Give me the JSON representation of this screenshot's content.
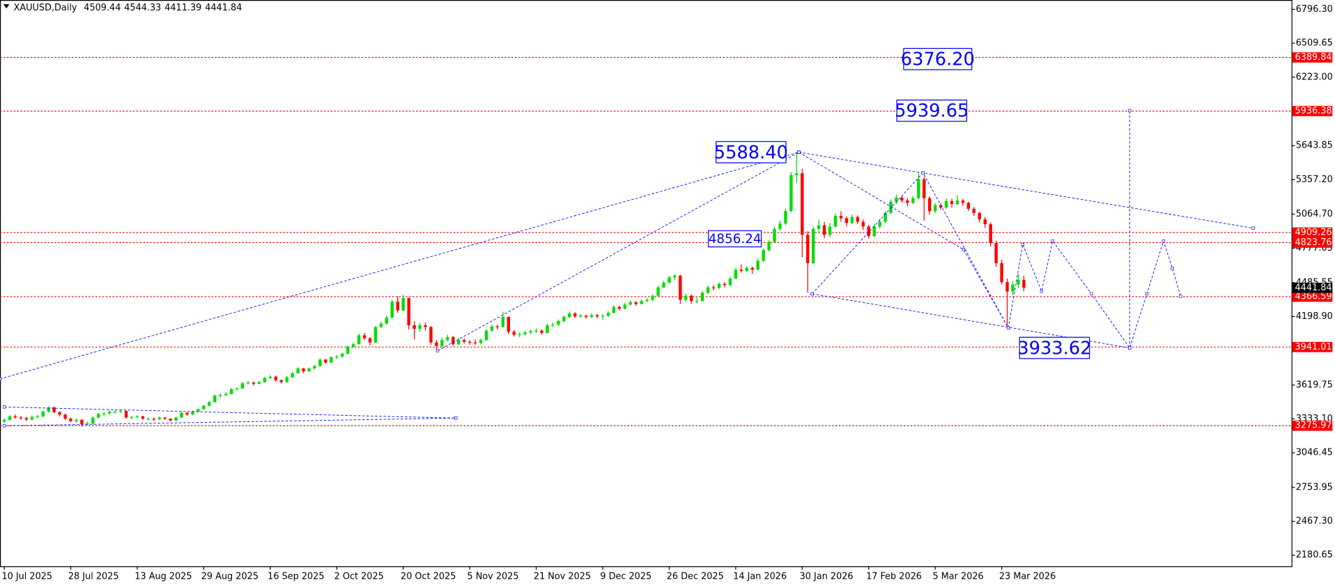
{
  "chart_data": {
    "type": "candlestick",
    "title": "XAUUSD,Daily",
    "categories": [
      "10 Jul 2025",
      null,
      null,
      null,
      null,
      null,
      null,
      null,
      null,
      null,
      null,
      null,
      "28 Jul 2025",
      null,
      null,
      null,
      null,
      null,
      null,
      null,
      null,
      null,
      null,
      null,
      "13 Aug 2025",
      null,
      null,
      null,
      null,
      null,
      null,
      null,
      null,
      null,
      null,
      null,
      "29 Aug 2025",
      null,
      null,
      null,
      null,
      null,
      null,
      null,
      null,
      null,
      null,
      null,
      "16 Sep 2025",
      null,
      null,
      null,
      null,
      null,
      null,
      null,
      null,
      null,
      null,
      null,
      "2 Oct 2025",
      null,
      null,
      null,
      null,
      null,
      null,
      null,
      null,
      null,
      null,
      null,
      "20 Oct 2025",
      null,
      null,
      null,
      null,
      null,
      null,
      null,
      null,
      null,
      null,
      null,
      "5 Nov 2025",
      null,
      null,
      null,
      null,
      null,
      null,
      null,
      null,
      null,
      null,
      null,
      "21 Nov 2025",
      null,
      null,
      null,
      null,
      null,
      null,
      null,
      null,
      null,
      null,
      null,
      "9 Dec 2025",
      null,
      null,
      null,
      null,
      null,
      null,
      null,
      null,
      null,
      null,
      null,
      "26 Dec 2025",
      null,
      null,
      null,
      null,
      null,
      null,
      null,
      null,
      null,
      null,
      null,
      "14 Jan 2026",
      null,
      null,
      null,
      null,
      null,
      null,
      null,
      null,
      null,
      null,
      null,
      "30 Jan 2026",
      null,
      null,
      null,
      null,
      null,
      null,
      null,
      null,
      null,
      null,
      null,
      "17 Feb 2026",
      null,
      null,
      null,
      null,
      null,
      null,
      null,
      null,
      null,
      null,
      null,
      "5 Mar 2026",
      null,
      null,
      null,
      null,
      null,
      null,
      null,
      null,
      null,
      null,
      null,
      "23 Mar 2026",
      null,
      null,
      null,
      null
    ],
    "ohlc": [
      [
        3310,
        3340,
        3300,
        3325
      ],
      [
        3325,
        3365,
        3318,
        3355
      ],
      [
        3355,
        3372,
        3335,
        3345
      ],
      [
        3345,
        3358,
        3325,
        3340
      ],
      [
        3340,
        3352,
        3315,
        3328
      ],
      [
        3328,
        3362,
        3320,
        3350
      ],
      [
        3350,
        3368,
        3338,
        3355
      ],
      [
        3355,
        3405,
        3348,
        3395
      ],
      [
        3395,
        3440,
        3385,
        3430
      ],
      [
        3430,
        3438,
        3380,
        3390
      ],
      [
        3390,
        3400,
        3355,
        3370
      ],
      [
        3370,
        3378,
        3325,
        3335
      ],
      [
        3335,
        3345,
        3305,
        3315
      ],
      [
        3315,
        3335,
        3300,
        3325
      ],
      [
        3325,
        3332,
        3268,
        3290
      ],
      [
        3290,
        3310,
        3280,
        3295
      ],
      [
        3295,
        3355,
        3285,
        3345
      ],
      [
        3345,
        3385,
        3340,
        3375
      ],
      [
        3375,
        3390,
        3360,
        3380
      ],
      [
        3380,
        3405,
        3370,
        3395
      ],
      [
        3395,
        3410,
        3380,
        3395
      ],
      [
        3395,
        3410,
        3385,
        3400
      ],
      [
        3400,
        3405,
        3335,
        3345
      ],
      [
        3345,
        3360,
        3330,
        3350
      ],
      [
        3350,
        3365,
        3340,
        3355
      ],
      [
        3355,
        3360,
        3325,
        3335
      ],
      [
        3335,
        3345,
        3320,
        3335
      ],
      [
        3335,
        3345,
        3315,
        3330
      ],
      [
        3330,
        3355,
        3322,
        3345
      ],
      [
        3345,
        3350,
        3325,
        3335
      ],
      [
        3335,
        3340,
        3312,
        3320
      ],
      [
        3320,
        3352,
        3315,
        3345
      ],
      [
        3345,
        3392,
        3340,
        3385
      ],
      [
        3385,
        3390,
        3360,
        3370
      ],
      [
        3370,
        3402,
        3365,
        3395
      ],
      [
        3395,
        3422,
        3388,
        3415
      ],
      [
        3415,
        3452,
        3410,
        3445
      ],
      [
        3445,
        3485,
        3440,
        3475
      ],
      [
        3475,
        3540,
        3470,
        3530
      ],
      [
        3530,
        3550,
        3515,
        3535
      ],
      [
        3535,
        3560,
        3525,
        3545
      ],
      [
        3545,
        3595,
        3540,
        3585
      ],
      [
        3585,
        3600,
        3575,
        3590
      ],
      [
        3590,
        3645,
        3585,
        3635
      ],
      [
        3635,
        3655,
        3625,
        3640
      ],
      [
        3640,
        3650,
        3615,
        3630
      ],
      [
        3630,
        3655,
        3625,
        3645
      ],
      [
        3645,
        3690,
        3640,
        3680
      ],
      [
        3680,
        3705,
        3670,
        3690
      ],
      [
        3690,
        3700,
        3650,
        3660
      ],
      [
        3660,
        3668,
        3630,
        3645
      ],
      [
        3645,
        3695,
        3640,
        3685
      ],
      [
        3685,
        3730,
        3680,
        3720
      ],
      [
        3720,
        3770,
        3715,
        3760
      ],
      [
        3760,
        3765,
        3720,
        3735
      ],
      [
        3735,
        3770,
        3730,
        3760
      ],
      [
        3760,
        3790,
        3750,
        3780
      ],
      [
        3780,
        3845,
        3775,
        3835
      ],
      [
        3835,
        3840,
        3800,
        3810
      ],
      [
        3810,
        3865,
        3805,
        3855
      ],
      [
        3855,
        3875,
        3840,
        3860
      ],
      [
        3860,
        3895,
        3850,
        3885
      ],
      [
        3885,
        3955,
        3880,
        3945
      ],
      [
        3945,
        3978,
        3935,
        3965
      ],
      [
        3965,
        4055,
        3960,
        4040
      ],
      [
        4040,
        4060,
        4000,
        4015
      ],
      [
        4015,
        4025,
        3955,
        3980
      ],
      [
        3980,
        4120,
        3975,
        4110
      ],
      [
        4110,
        4155,
        4100,
        4140
      ],
      [
        4140,
        4210,
        4130,
        4190
      ],
      [
        4190,
        4340,
        4185,
        4325
      ],
      [
        4325,
        4370,
        4230,
        4250
      ],
      [
        4250,
        4381,
        4245,
        4355
      ],
      [
        4355,
        4360,
        4090,
        4125
      ],
      [
        4125,
        4160,
        4005,
        4095
      ],
      [
        4095,
        4145,
        4070,
        4125
      ],
      [
        4125,
        4150,
        4080,
        4110
      ],
      [
        4110,
        4120,
        3960,
        3980
      ],
      [
        3980,
        4000,
        3905,
        3950
      ],
      [
        3950,
        4020,
        3940,
        4000
      ],
      [
        4000,
        4045,
        3990,
        4025
      ],
      [
        4025,
        4035,
        3950,
        3965
      ],
      [
        3965,
        4020,
        3955,
        4000
      ],
      [
        4000,
        4015,
        3970,
        3985
      ],
      [
        3985,
        4000,
        3960,
        3980
      ],
      [
        3980,
        4005,
        3960,
        3975
      ],
      [
        3975,
        4015,
        3965,
        4000
      ],
      [
        4000,
        4095,
        3995,
        4080
      ],
      [
        4080,
        4130,
        4070,
        4115
      ],
      [
        4115,
        4130,
        4090,
        4110
      ],
      [
        4110,
        4240,
        4105,
        4195
      ],
      [
        4195,
        4200,
        4050,
        4070
      ],
      [
        4070,
        4085,
        4030,
        4045
      ],
      [
        4045,
        4065,
        4025,
        4050
      ],
      [
        4050,
        4080,
        4040,
        4065
      ],
      [
        4065,
        4090,
        4050,
        4075
      ],
      [
        4075,
        4100,
        4060,
        4080
      ],
      [
        4080,
        4090,
        4045,
        4060
      ],
      [
        4060,
        4140,
        4055,
        4125
      ],
      [
        4125,
        4150,
        4110,
        4130
      ],
      [
        4130,
        4175,
        4120,
        4160
      ],
      [
        4160,
        4210,
        4150,
        4195
      ],
      [
        4195,
        4240,
        4185,
        4225
      ],
      [
        4225,
        4235,
        4185,
        4200
      ],
      [
        4200,
        4220,
        4190,
        4205
      ],
      [
        4205,
        4215,
        4180,
        4195
      ],
      [
        4195,
        4225,
        4185,
        4210
      ],
      [
        4210,
        4220,
        4185,
        4200
      ],
      [
        4200,
        4220,
        4170,
        4205
      ],
      [
        4205,
        4245,
        4195,
        4230
      ],
      [
        4230,
        4295,
        4225,
        4280
      ],
      [
        4280,
        4290,
        4250,
        4265
      ],
      [
        4265,
        4315,
        4260,
        4300
      ],
      [
        4300,
        4335,
        4290,
        4320
      ],
      [
        4320,
        4330,
        4290,
        4305
      ],
      [
        4305,
        4345,
        4300,
        4330
      ],
      [
        4330,
        4355,
        4320,
        4340
      ],
      [
        4340,
        4385,
        4330,
        4375
      ],
      [
        4375,
        4460,
        4370,
        4445
      ],
      [
        4445,
        4500,
        4440,
        4485
      ],
      [
        4485,
        4545,
        4475,
        4530
      ],
      [
        4530,
        4557,
        4505,
        4545
      ],
      [
        4545,
        4550,
        4305,
        4340
      ],
      [
        4340,
        4395,
        4320,
        4375
      ],
      [
        4375,
        4385,
        4305,
        4330
      ],
      [
        4330,
        4360,
        4310,
        4330
      ],
      [
        4330,
        4415,
        4325,
        4400
      ],
      [
        4400,
        4460,
        4390,
        4445
      ],
      [
        4445,
        4465,
        4420,
        4440
      ],
      [
        4440,
        4490,
        4430,
        4475
      ],
      [
        4475,
        4490,
        4445,
        4465
      ],
      [
        4465,
        4535,
        4455,
        4520
      ],
      [
        4520,
        4610,
        4515,
        4595
      ],
      [
        4595,
        4640,
        4570,
        4585
      ],
      [
        4585,
        4625,
        4575,
        4610
      ],
      [
        4610,
        4620,
        4560,
        4595
      ],
      [
        4595,
        4690,
        4590,
        4670
      ],
      [
        4670,
        4775,
        4660,
        4760
      ],
      [
        4760,
        4845,
        4750,
        4830
      ],
      [
        4830,
        4960,
        4820,
        4940
      ],
      [
        4940,
        5010,
        4925,
        4985
      ],
      [
        4985,
        5110,
        4970,
        5090
      ],
      [
        5090,
        5420,
        5080,
        5395
      ],
      [
        5395,
        5588,
        5330,
        5410
      ],
      [
        5410,
        5450,
        4700,
        4890
      ],
      [
        4890,
        4920,
        4400,
        4650
      ],
      [
        4650,
        4960,
        4640,
        4940
      ],
      [
        4940,
        5020,
        4900,
        4970
      ],
      [
        4970,
        5000,
        4860,
        4890
      ],
      [
        4890,
        4990,
        4870,
        4960
      ],
      [
        4960,
        5070,
        4950,
        5050
      ],
      [
        5050,
        5090,
        5000,
        5030
      ],
      [
        5030,
        5045,
        4960,
        4990
      ],
      [
        4990,
        5060,
        4980,
        5040
      ],
      [
        5040,
        5055,
        4980,
        5000
      ],
      [
        5000,
        5020,
        4930,
        4960
      ],
      [
        4960,
        4975,
        4860,
        4880
      ],
      [
        4880,
        4980,
        4870,
        4960
      ],
      [
        4960,
        5025,
        4945,
        5000
      ],
      [
        5000,
        5090,
        4990,
        5075
      ],
      [
        5075,
        5190,
        5065,
        5170
      ],
      [
        5170,
        5230,
        5150,
        5205
      ],
      [
        5205,
        5215,
        5160,
        5180
      ],
      [
        5180,
        5200,
        5130,
        5160
      ],
      [
        5160,
        5220,
        5150,
        5200
      ],
      [
        5200,
        5414,
        5190,
        5360
      ],
      [
        5360,
        5380,
        5010,
        5200
      ],
      [
        5200,
        5215,
        5060,
        5090
      ],
      [
        5090,
        5160,
        5075,
        5140
      ],
      [
        5140,
        5155,
        5100,
        5120
      ],
      [
        5120,
        5200,
        5110,
        5175
      ],
      [
        5175,
        5195,
        5120,
        5150
      ],
      [
        5150,
        5225,
        5140,
        5180
      ],
      [
        5180,
        5195,
        5135,
        5160
      ],
      [
        5160,
        5170,
        5090,
        5110
      ],
      [
        5110,
        5125,
        5050,
        5075
      ],
      [
        5075,
        5085,
        4995,
        5020
      ],
      [
        5020,
        5040,
        4950,
        4980
      ],
      [
        4980,
        4995,
        4790,
        4820
      ],
      [
        4820,
        4840,
        4620,
        4650
      ],
      [
        4650,
        4680,
        4470,
        4490
      ],
      [
        4490,
        4520,
        4100,
        4410
      ],
      [
        4410,
        4500,
        4380,
        4470
      ],
      [
        4470,
        4560,
        4440,
        4510
      ],
      [
        4509.44,
        4544.33,
        4411.39,
        4441.84
      ]
    ],
    "bull_color": "#00dd00",
    "bear_color": "#ff0000",
    "ylim": [
      2087.2,
      6868.3
    ],
    "yticks": [
      {
        "value": 6796.3,
        "label": "6796.30"
      },
      6509.65,
      {
        "value": 6223,
        "label": "6223.00"
      },
      5643.85,
      {
        "value": 5357.2,
        "label": "5357.20"
      },
      {
        "value": 5064.7,
        "label": "5064.70"
      },
      4777.05,
      4485.55,
      {
        "value": 4198.9,
        "label": "4198.90"
      },
      3619.75,
      {
        "value": 3333.1,
        "label": "3333.10"
      },
      3046.45,
      2753.95,
      {
        "value": 2467.3,
        "label": "2467.30"
      },
      2180.65
    ],
    "levels": [
      6389.84,
      5936.38,
      4909.26,
      4823.76,
      4366.59,
      3941.01,
      3275.97
    ],
    "level_color": "#ff0000",
    "trend_color": "#1c1cff",
    "trendlines": [
      {
        "x": [
          -0.8,
          143.4
        ],
        "y": [
          3671,
          5588.4
        ]
      },
      {
        "x": [
          78.2,
          143.4
        ],
        "y": [
          3909,
          5588.4
        ]
      },
      {
        "x": [
          143.4,
          225.4
        ],
        "y": [
          5588.4,
          4946
        ]
      },
      {
        "x": [
          143.4,
          173.1,
          181.2
        ],
        "y": [
          5588.4,
          4766,
          4103
        ]
      },
      {
        "x": [
          145.8,
          165.8,
          181.2
        ],
        "y": [
          4391,
          5414,
          4103
        ]
      },
      {
        "x": [
          145.8,
          203.1
        ],
        "y": [
          4391,
          3933.62
        ]
      },
      {
        "x": [
          181.2,
          183.8,
          187.2,
          189.2,
          196.2,
          203.1,
          206.2,
          209.2,
          210.8,
          212.3
        ],
        "y": [
          4103,
          4809,
          4413,
          4838,
          4391,
          3933.62,
          4391,
          4838,
          4607,
          4370
        ]
      },
      {
        "x": [
          203.1,
          203.1
        ],
        "y": [
          3933.62,
          5939.65
        ]
      },
      {
        "x": [
          0,
          81.5
        ],
        "y": [
          3434,
          3340
        ]
      },
      {
        "x": [
          0,
          81.5
        ],
        "y": [
          3275,
          3340
        ]
      }
    ],
    "annotations": [
      {
        "label": "6376.20",
        "value": 6376.2
      },
      {
        "label": "5939.65",
        "value": 5939.65
      },
      {
        "label": "5588.40",
        "value": 5588.4
      },
      {
        "label": "4856.24",
        "value": 4856.24
      },
      {
        "label": "3933.62",
        "value": 3933.62
      }
    ],
    "annotation_color": "#0000ff"
  }
}
